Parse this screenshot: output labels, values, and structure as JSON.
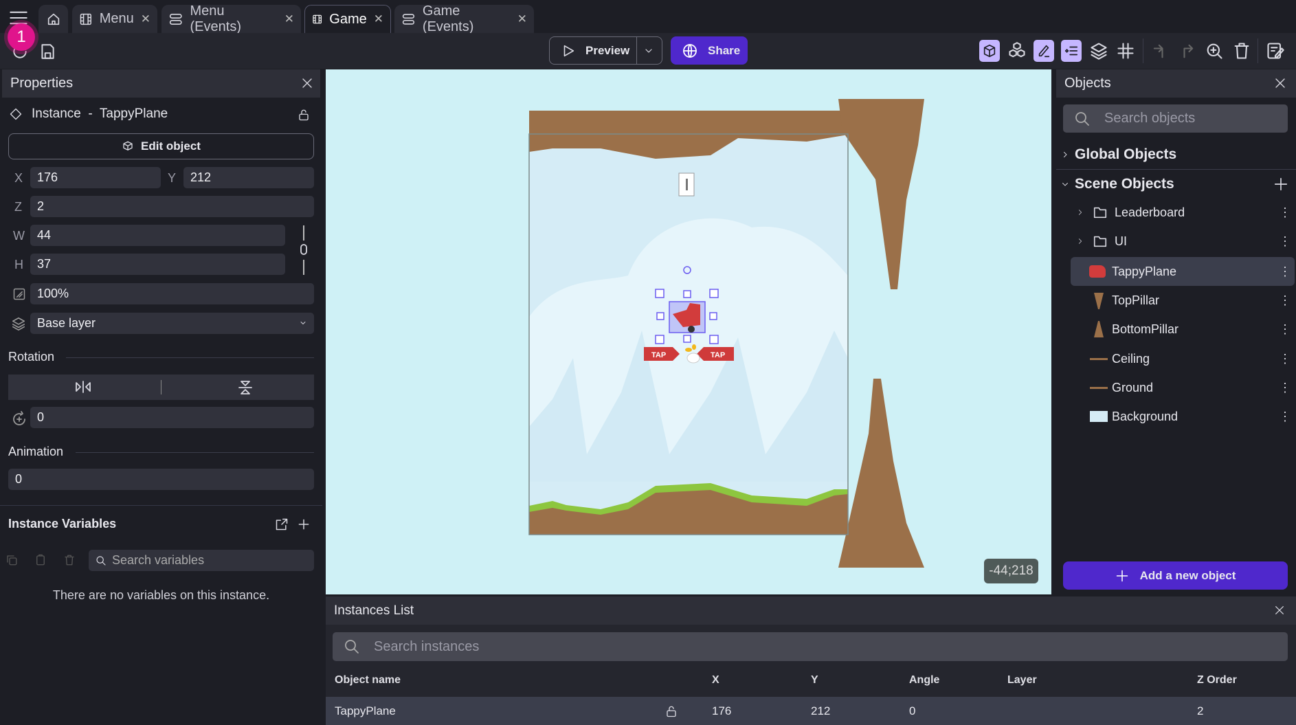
{
  "tabs": [
    {
      "label": "Menu",
      "icon": "scene-film-icon"
    },
    {
      "label": "Menu (Events)",
      "icon": "events-icon"
    },
    {
      "label": "Game",
      "icon": "scene-film-icon",
      "active": true
    },
    {
      "label": "Game (Events)",
      "icon": "events-icon"
    }
  ],
  "notification_badge": "1",
  "toolbar": {
    "preview_label": "Preview",
    "share_label": "Share",
    "accent": "#4f28cc"
  },
  "properties": {
    "title": "Properties",
    "instance_label": "Instance  -  TappyPlane",
    "edit_object_label": "Edit object",
    "x_label": "X",
    "x": "176",
    "y_label": "Y",
    "y": "212",
    "z_label": "Z",
    "z": "2",
    "w_label": "W",
    "w": "44",
    "h_label": "H",
    "h": "37",
    "opacity": "100%",
    "layer": "Base layer",
    "rotation_title": "Rotation",
    "rotation": "0",
    "animation_title": "Animation",
    "animation": "0",
    "variables_title": "Instance Variables",
    "variables_search_placeholder": "Search variables",
    "no_variables": "There are no variables on this instance."
  },
  "canvas": {
    "coords": "-44;218",
    "background": "#cff1f6",
    "tap_label": "TAP"
  },
  "objects": {
    "title": "Objects",
    "search_placeholder": "Search objects",
    "global_label": "Global Objects",
    "scene_label": "Scene Objects",
    "items": [
      {
        "name": "Leaderboard",
        "type": "folder"
      },
      {
        "name": "UI",
        "type": "folder"
      },
      {
        "name": "TappyPlane",
        "type": "sprite",
        "selected": true
      },
      {
        "name": "TopPillar",
        "type": "sprite"
      },
      {
        "name": "BottomPillar",
        "type": "sprite"
      },
      {
        "name": "Ceiling",
        "type": "sprite"
      },
      {
        "name": "Ground",
        "type": "sprite"
      },
      {
        "name": "Background",
        "type": "sprite"
      }
    ],
    "add_label": "Add a new object"
  },
  "instances": {
    "title": "Instances List",
    "search_placeholder": "Search instances",
    "columns": [
      "Object name",
      "X",
      "Y",
      "Angle",
      "Layer",
      "Z Order"
    ],
    "rows": [
      {
        "name": "TappyPlane",
        "x": "176",
        "y": "212",
        "angle": "0",
        "layer": "",
        "z": "2"
      }
    ]
  }
}
